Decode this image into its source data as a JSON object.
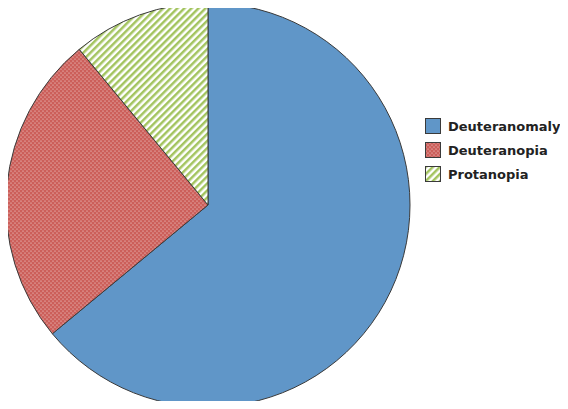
{
  "chart_data": {
    "type": "pie",
    "categories": [
      "Deuteranomaly",
      "Deuteranopia",
      "Protanopia"
    ],
    "values": [
      64,
      25,
      11
    ],
    "colors": [
      "#6096c8",
      "#cc5f5a",
      "#a3c45f"
    ],
    "legend": "right"
  }
}
